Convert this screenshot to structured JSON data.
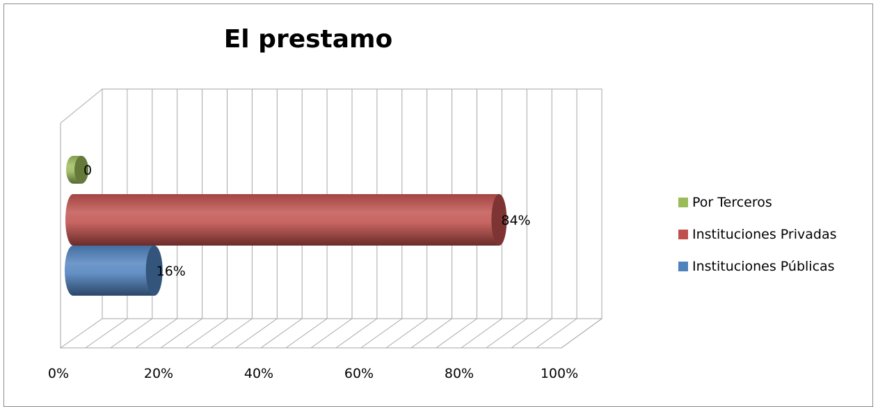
{
  "chart_data": {
    "type": "bar",
    "orientation": "horizontal",
    "style": "3d-cylinder",
    "title": "El prestamo",
    "xlabel": "",
    "ylabel": "",
    "xlim": [
      0,
      100
    ],
    "x_ticks": [
      "0%",
      "20%",
      "40%",
      "60%",
      "80%",
      "100%"
    ],
    "grid": true,
    "legend_position": "right",
    "series": [
      {
        "name": "Instituciones Públicas",
        "value": 16,
        "label": "16%",
        "color": "#4f81bd"
      },
      {
        "name": "Instituciones Privadas",
        "value": 84,
        "label": "84%",
        "color": "#c0504d"
      },
      {
        "name": "Por Terceros",
        "value": 0,
        "label": "0",
        "color": "#9bbb59"
      }
    ],
    "legend_order": [
      "Por Terceros",
      "Instituciones Privadas",
      "Instituciones Públicas"
    ]
  }
}
